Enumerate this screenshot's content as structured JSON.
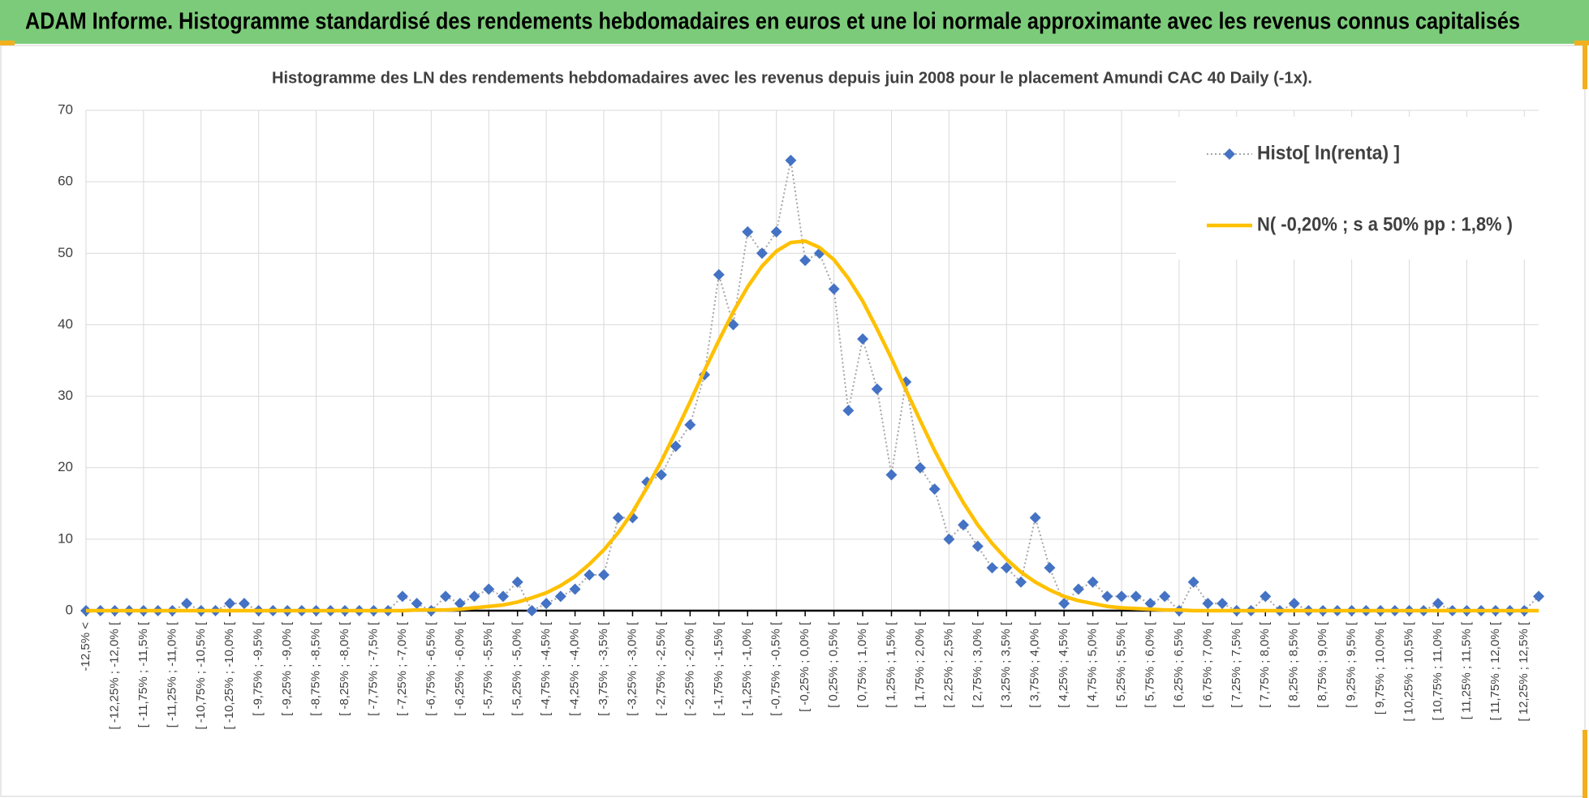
{
  "header": {
    "title": "ADAM Informe. Histogramme standardisé des rendements hebdomadaires en euros et une loi normale approximante avec les revenus connus capitalisés"
  },
  "chart_data": {
    "type": "line",
    "title": "Histogramme  des LN des rendements hebdomadaires avec les revenus depuis juin 2008 pour le placement Amundi CAC 40 Daily (-1x).",
    "categories": [
      "-12,5% <",
      null,
      "[ -12,25% ; -12,0% [",
      null,
      "[ -11,75% ; -11,5% [",
      null,
      "[ -11,25% ; -11,0% [",
      null,
      "[ -10,75% ; -10,5% [",
      null,
      "[ -10,25% ; -10,0% [",
      null,
      "[ -9,75% ; -9,5% [",
      null,
      "[ -9,25% ; -9,0% [",
      null,
      "[ -8,75% ; -8,5% [",
      null,
      "[ -8,25% ; -8,0% [",
      null,
      "[ -7,75% ; -7,5% [",
      null,
      "[ -7,25% ; -7,0% [",
      null,
      "[ -6,75% ; -6,5% [",
      null,
      "[ -6,25% ; -6,0% [",
      null,
      "[ -5,75% ; -5,5% [",
      null,
      "[ -5,25% ; -5,0% [",
      null,
      "[ -4,75% ; -4,5% [",
      null,
      "[ -4,25% ; -4,0% [",
      null,
      "[ -3,75% ; -3,5% [",
      null,
      "[ -3,25% ; -3,0% [",
      null,
      "[ -2,75% ; -2,5% [",
      null,
      "[ -2,25% ; -2,0% [",
      null,
      "[ -1,75% ; -1,5% [",
      null,
      "[ -1,25% ; -1,0% [",
      null,
      "[ -0,75% ; -0,5% [",
      null,
      "[ -0,25% ; 0,0% [",
      null,
      "[ 0,25% ; 0,5% [",
      null,
      "[ 0,75% ; 1,0% [",
      null,
      "[ 1,25% ; 1,5% [",
      null,
      "[ 1,75% ; 2,0% [",
      null,
      "[ 2,25% ; 2,5% [",
      null,
      "[ 2,75% ; 3,0% [",
      null,
      "[ 3,25% ; 3,5% [",
      null,
      "[ 3,75% ; 4,0% [",
      null,
      "[ 4,25% ; 4,5% [",
      null,
      "[ 4,75% ; 5,0% [",
      null,
      "[ 5,25% ; 5,5% [",
      null,
      "[ 5,75% ; 6,0% [",
      null,
      "[ 6,25% ; 6,5% [",
      null,
      "[ 6,75% ; 7,0% [",
      null,
      "[ 7,25% ; 7,5% [",
      null,
      "[ 7,75% ; 8,0% [",
      null,
      "[ 8,25% ; 8,5% [",
      null,
      "[ 8,75% ; 9,0% [",
      null,
      "[ 9,25% ; 9,5% [",
      null,
      "[ 9,75% ; 10,0% [",
      null,
      "[ 10,25% ; 10,5% [",
      null,
      "[ 10,75% ; 11,0% [",
      null,
      "[ 11,25% ; 11,5% [",
      null,
      "[ 11,75% ; 12,0% [",
      null,
      "[ 12,25% ; 12,5% [",
      null
    ],
    "series": [
      {
        "name": "Histo[ ln(renta) ]",
        "color": "#4472c4",
        "line_color": "#a6a6a6",
        "line_style": "dotted",
        "marker": "diamond",
        "values": [
          0,
          0,
          0,
          0,
          0,
          0,
          0,
          1,
          0,
          0,
          1,
          1,
          0,
          0,
          0,
          0,
          0,
          0,
          0,
          0,
          0,
          0,
          2,
          1,
          0,
          2,
          1,
          2,
          3,
          2,
          4,
          0,
          1,
          2,
          3,
          5,
          5,
          13,
          13,
          18,
          19,
          23,
          26,
          33,
          47,
          40,
          53,
          50,
          53,
          63,
          49,
          50,
          45,
          28,
          38,
          31,
          19,
          32,
          20,
          17,
          10,
          12,
          9,
          6,
          6,
          4,
          13,
          6,
          1,
          3,
          4,
          2,
          2,
          2,
          1,
          2,
          0,
          4,
          1,
          1,
          0,
          0,
          2,
          0,
          1,
          0,
          0,
          0,
          0,
          0,
          0,
          0,
          0,
          0,
          1,
          0,
          0,
          0,
          0,
          0,
          0,
          2
        ]
      },
      {
        "name": "N( -0,20% ; s a 50% pp : 1,8% )",
        "color": "#ffc000",
        "line_style": "solid",
        "marker": "none",
        "values": [
          0,
          0,
          0,
          0,
          0,
          0,
          0,
          0,
          0,
          0,
          0,
          0,
          0,
          0,
          0,
          0,
          0,
          0,
          0,
          0,
          0,
          0,
          0,
          0.1,
          0.1,
          0.1,
          0.2,
          0.4,
          0.6,
          0.8,
          1.2,
          1.8,
          2.5,
          3.5,
          4.8,
          6.5,
          8.5,
          10.9,
          13.8,
          17.2,
          20.9,
          25.0,
          29.2,
          33.6,
          37.8,
          41.8,
          45.3,
          48.2,
          50.3,
          51.5,
          51.7,
          50.8,
          49.1,
          46.5,
          43.3,
          39.4,
          35.3,
          30.9,
          26.6,
          22.4,
          18.6,
          15.1,
          12.0,
          9.4,
          7.2,
          5.4,
          4.0,
          2.9,
          2.0,
          1.4,
          1.0,
          0.6,
          0.4,
          0.3,
          0.2,
          0.1,
          0.1,
          0,
          0,
          0,
          0,
          0,
          0,
          0,
          0,
          0,
          0,
          0,
          0,
          0,
          0,
          0,
          0,
          0,
          0,
          0,
          0,
          0,
          0,
          0,
          0,
          0
        ]
      }
    ],
    "ylim": [
      0,
      70
    ],
    "yticks": [
      0,
      10,
      20,
      30,
      40,
      50,
      60,
      70
    ],
    "grid": true,
    "legend": "upper right"
  }
}
